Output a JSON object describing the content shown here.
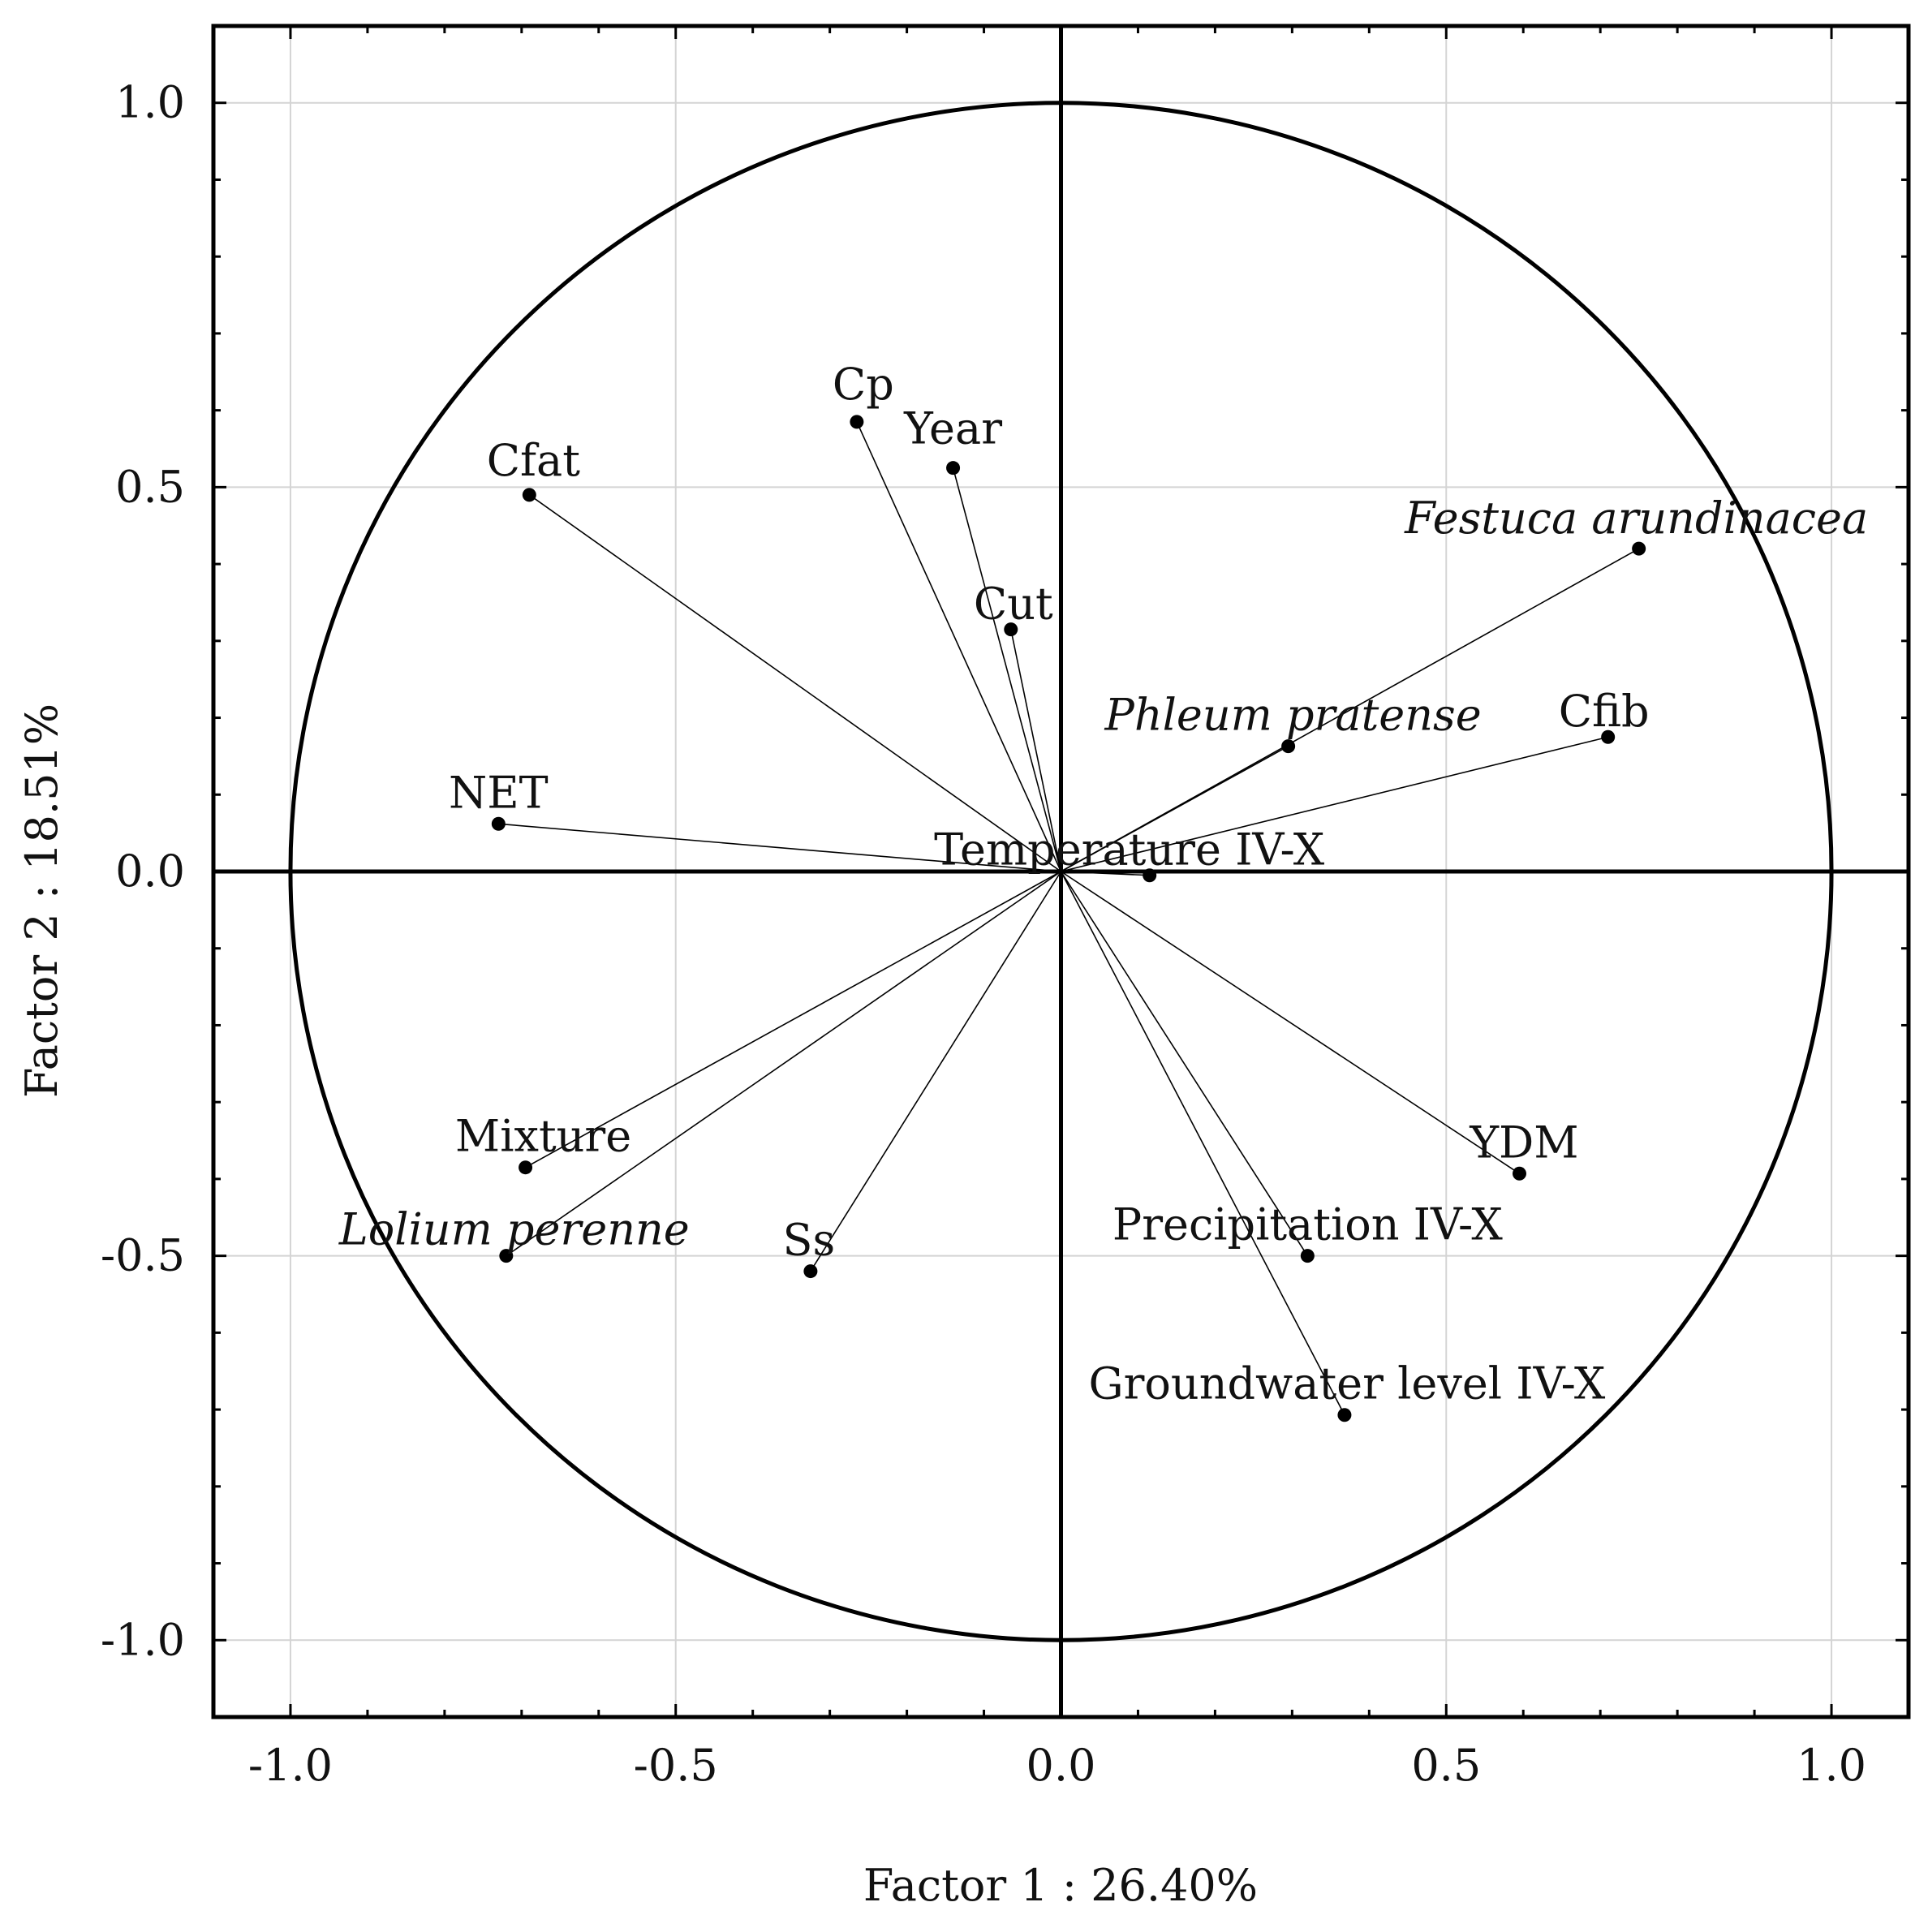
{
  "chart_data": {
    "type": "scatter",
    "subtype": "pca-correlation-circle",
    "title": "",
    "xlabel": "Factor 1 : 26.40%",
    "ylabel": "Factor 2 : 18.51%",
    "xlim": [
      -1.1,
      1.1
    ],
    "ylim": [
      -1.1,
      1.1
    ],
    "xticks": [
      -1.0,
      -0.5,
      0.0,
      0.5,
      1.0
    ],
    "yticks": [
      -1.0,
      -0.5,
      0.0,
      0.5,
      1.0
    ],
    "xtick_labels": [
      "-1.0",
      "-0.5",
      "0.0",
      "0.5",
      "1.0"
    ],
    "ytick_labels": [
      "-1.0",
      "-0.5",
      "0.0",
      "0.5",
      "1.0"
    ],
    "grid": true,
    "unit_circle": true,
    "vectors_from_origin": true,
    "points": [
      {
        "label": "Cp",
        "x": -0.265,
        "y": 0.585,
        "italic": false
      },
      {
        "label": "Year",
        "x": -0.14,
        "y": 0.525,
        "italic": false
      },
      {
        "label": "Cfat",
        "x": -0.69,
        "y": 0.49,
        "italic": false
      },
      {
        "label": "Festuca arundinacea",
        "x": 0.75,
        "y": 0.42,
        "italic": true
      },
      {
        "label": "Cut",
        "x": -0.065,
        "y": 0.315,
        "italic": false
      },
      {
        "label": "Phleum pratense",
        "x": 0.295,
        "y": 0.163,
        "italic": true
      },
      {
        "label": "Cfib",
        "x": 0.71,
        "y": 0.175,
        "italic": false
      },
      {
        "label": "NET",
        "x": -0.73,
        "y": 0.062,
        "italic": false
      },
      {
        "label": "Temperature IV-X",
        "x": 0.115,
        "y": -0.005,
        "italic": false
      },
      {
        "label": "Mixture",
        "x": -0.695,
        "y": -0.385,
        "italic": false
      },
      {
        "label": "YDM",
        "x": 0.595,
        "y": -0.393,
        "italic": false
      },
      {
        "label": "Lolium perenne",
        "x": -0.72,
        "y": -0.5,
        "italic": true
      },
      {
        "label": "Ss",
        "x": -0.325,
        "y": -0.52,
        "italic": false
      },
      {
        "label": "Precipitation IV-X",
        "x": 0.32,
        "y": -0.5,
        "italic": false
      },
      {
        "label": "Groundwater level IV-X",
        "x": 0.368,
        "y": -0.707,
        "italic": false
      }
    ]
  }
}
